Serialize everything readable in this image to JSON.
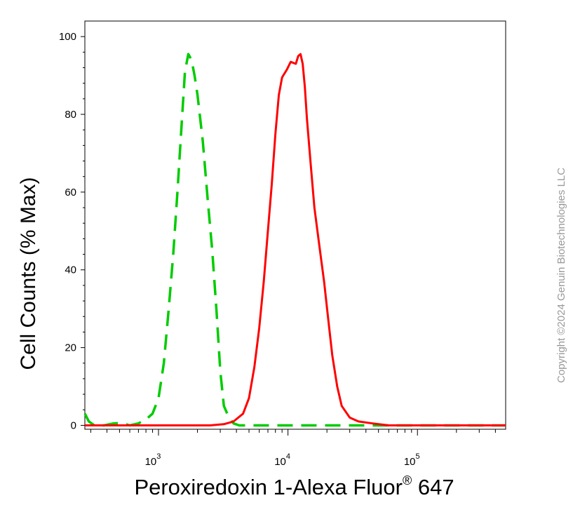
{
  "chart_data": {
    "type": "line",
    "xlabel_main": "Peroxiredoxin 1-Alexa Fluor",
    "xlabel_sup": "®",
    "xlabel_tail": " 647",
    "ylabel": "Cell Counts (% Max)",
    "x_scale": "log",
    "xlim": [
      270,
      480000
    ],
    "ylim": [
      -1,
      104
    ],
    "y_ticks": [
      0,
      20,
      40,
      60,
      80,
      100
    ],
    "y_tick_labels": [
      "0",
      "20",
      "40",
      "60",
      "80",
      "100"
    ],
    "x_ticks": [
      1000,
      10000,
      100000
    ],
    "x_tick_labels": [
      {
        "base": "10",
        "exp": "3"
      },
      {
        "base": "10",
        "exp": "4"
      },
      {
        "base": "10",
        "exp": "5"
      }
    ],
    "grid": false,
    "series": [
      {
        "color": "#00cc00",
        "style": "dashed",
        "points": [
          [
            270,
            3
          ],
          [
            290,
            1
          ],
          [
            320,
            0
          ],
          [
            380,
            0
          ],
          [
            450,
            0.5
          ],
          [
            520,
            0.6
          ],
          [
            600,
            0
          ],
          [
            700,
            0.5
          ],
          [
            800,
            1.5
          ],
          [
            900,
            3
          ],
          [
            1000,
            7
          ],
          [
            1100,
            16
          ],
          [
            1200,
            30
          ],
          [
            1300,
            44
          ],
          [
            1400,
            60
          ],
          [
            1500,
            76
          ],
          [
            1600,
            91
          ],
          [
            1700,
            95.5
          ],
          [
            1800,
            94
          ],
          [
            1900,
            90
          ],
          [
            2000,
            85
          ],
          [
            2200,
            73
          ],
          [
            2400,
            58
          ],
          [
            2600,
            45
          ],
          [
            2800,
            30
          ],
          [
            3000,
            14
          ],
          [
            3200,
            5
          ],
          [
            3500,
            2
          ],
          [
            3800,
            0.5
          ],
          [
            4200,
            0
          ],
          [
            10000,
            0
          ],
          [
            100000,
            0
          ],
          [
            480000,
            0
          ]
        ]
      },
      {
        "color": "#ff0000",
        "style": "solid",
        "points": [
          [
            270,
            0
          ],
          [
            1000,
            0
          ],
          [
            2500,
            0
          ],
          [
            3200,
            0.3
          ],
          [
            3800,
            1
          ],
          [
            4500,
            3
          ],
          [
            5000,
            7
          ],
          [
            5500,
            15
          ],
          [
            6000,
            25
          ],
          [
            6500,
            37
          ],
          [
            7000,
            50
          ],
          [
            7500,
            62
          ],
          [
            8000,
            75
          ],
          [
            8500,
            85
          ],
          [
            9000,
            89.5
          ],
          [
            9800,
            91.5
          ],
          [
            10500,
            93.5
          ],
          [
            11500,
            93
          ],
          [
            12000,
            95
          ],
          [
            12500,
            95.5
          ],
          [
            13000,
            93
          ],
          [
            13500,
            87
          ],
          [
            14000,
            79
          ],
          [
            15000,
            67
          ],
          [
            16000,
            56
          ],
          [
            17500,
            46
          ],
          [
            19000,
            37
          ],
          [
            20500,
            27
          ],
          [
            22000,
            18
          ],
          [
            24000,
            10
          ],
          [
            26000,
            5
          ],
          [
            30000,
            2
          ],
          [
            35000,
            1
          ],
          [
            45000,
            0.5
          ],
          [
            60000,
            0
          ],
          [
            480000,
            0
          ]
        ]
      }
    ]
  },
  "copyright": "Copyright ©2024 Genuin Biotechnologies LLC"
}
